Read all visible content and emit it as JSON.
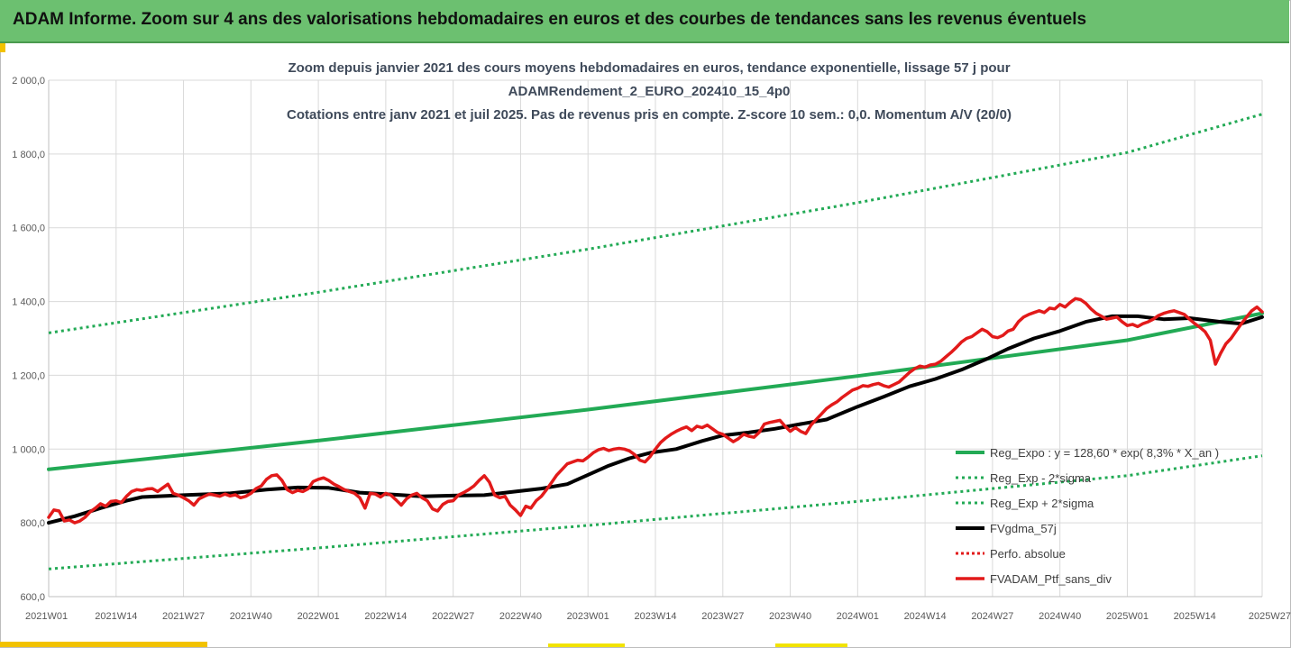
{
  "header": {
    "title": "ADAM Informe. Zoom sur 4 ans des valorisations hebdomadaires en euros et des courbes de tendances sans les revenus éventuels"
  },
  "chart_data": {
    "type": "line",
    "title_lines": [
      "Zoom depuis janvier 2021 des cours moyens hebdomadaires  en euros, tendance exponentielle, lissage 57 j pour",
      "ADAMRendement_2_EURO_202410_15_4p0",
      "Cotations entre janv 2021 et juil 2025. Pas de revenus pris en compte. Z-score 10 sem.: 0,0. Momentum A/V (20/0)"
    ],
    "x_tick_labels": [
      "2021W01",
      "2021W14",
      "2021W27",
      "2021W40",
      "2022W01",
      "2022W14",
      "2022W27",
      "2022W40",
      "2023W01",
      "2023W14",
      "2023W27",
      "2023W40",
      "2024W01",
      "2024W14",
      "2024W27",
      "2024W40",
      "2025W01",
      "2025W14",
      "2025W27"
    ],
    "x_range_weeks": [
      0,
      234
    ],
    "y_tick_labels": [
      "600,0",
      "800,0",
      "1 000,0",
      "1 200,0",
      "1 400,0",
      "1 600,0",
      "1 800,0",
      "2 000,0"
    ],
    "ylim": [
      600,
      2000
    ],
    "grid": true,
    "legend_position": "bottom-right",
    "colors": {
      "green": "#22aa55",
      "black": "#000000",
      "red": "#e21a1a"
    },
    "series": [
      {
        "name": "Reg_Expo : y = 128,60 * exp( 8,3% *  X_an )",
        "style": "solid-green",
        "points": [
          [
            0,
            945
          ],
          [
            52,
            1023
          ],
          [
            104,
            1107
          ],
          [
            156,
            1198
          ],
          [
            208,
            1295
          ],
          [
            234,
            1368
          ]
        ]
      },
      {
        "name": "Reg_Exp - 2*sigma",
        "style": "dotted-green",
        "points": [
          [
            0,
            675
          ],
          [
            52,
            732
          ],
          [
            104,
            793
          ],
          [
            156,
            858
          ],
          [
            208,
            928
          ],
          [
            234,
            982
          ]
        ]
      },
      {
        "name": "Reg_Exp + 2*sigma",
        "style": "dotted-green",
        "points": [
          [
            0,
            1315
          ],
          [
            52,
            1425
          ],
          [
            104,
            1542
          ],
          [
            156,
            1668
          ],
          [
            208,
            1804
          ],
          [
            234,
            1908
          ]
        ]
      },
      {
        "name": "FVgdma_57j",
        "style": "solid-black",
        "points": [
          [
            0,
            800
          ],
          [
            5,
            818
          ],
          [
            10,
            840
          ],
          [
            15,
            860
          ],
          [
            18,
            870
          ],
          [
            26,
            875
          ],
          [
            35,
            880
          ],
          [
            42,
            890
          ],
          [
            48,
            896
          ],
          [
            54,
            895
          ],
          [
            60,
            882
          ],
          [
            65,
            878
          ],
          [
            72,
            872
          ],
          [
            78,
            874
          ],
          [
            84,
            875
          ],
          [
            90,
            885
          ],
          [
            95,
            893
          ],
          [
            100,
            905
          ],
          [
            104,
            930
          ],
          [
            108,
            955
          ],
          [
            112,
            975
          ],
          [
            116,
            990
          ],
          [
            121,
            1000
          ],
          [
            126,
            1022
          ],
          [
            130,
            1037
          ],
          [
            135,
            1045
          ],
          [
            140,
            1055
          ],
          [
            145,
            1068
          ],
          [
            150,
            1080
          ],
          [
            156,
            1115
          ],
          [
            161,
            1142
          ],
          [
            166,
            1170
          ],
          [
            171,
            1190
          ],
          [
            176,
            1215
          ],
          [
            181,
            1245
          ],
          [
            185,
            1272
          ],
          [
            190,
            1300
          ],
          [
            195,
            1320
          ],
          [
            200,
            1345
          ],
          [
            205,
            1360
          ],
          [
            210,
            1360
          ],
          [
            215,
            1352
          ],
          [
            220,
            1355
          ],
          [
            226,
            1345
          ],
          [
            230,
            1340
          ],
          [
            234,
            1358
          ]
        ]
      },
      {
        "name": "Perfo. absolue",
        "style": "dotted-red",
        "points": []
      },
      {
        "name": "FVADAM_Ptf_sans_div",
        "style": "solid-red",
        "points": [
          [
            0,
            815
          ],
          [
            1,
            835
          ],
          [
            2,
            832
          ],
          [
            3,
            805
          ],
          [
            4,
            808
          ],
          [
            5,
            800
          ],
          [
            6,
            805
          ],
          [
            7,
            815
          ],
          [
            8,
            830
          ],
          [
            9,
            840
          ],
          [
            10,
            852
          ],
          [
            11,
            845
          ],
          [
            12,
            858
          ],
          [
            13,
            860
          ],
          [
            14,
            855
          ],
          [
            15,
            872
          ],
          [
            16,
            885
          ],
          [
            17,
            890
          ],
          [
            18,
            888
          ],
          [
            19,
            892
          ],
          [
            20,
            893
          ],
          [
            21,
            885
          ],
          [
            22,
            895
          ],
          [
            23,
            905
          ],
          [
            24,
            880
          ],
          [
            25,
            875
          ],
          [
            26,
            868
          ],
          [
            27,
            860
          ],
          [
            28,
            848
          ],
          [
            29,
            865
          ],
          [
            30,
            872
          ],
          [
            31,
            878
          ],
          [
            32,
            875
          ],
          [
            33,
            872
          ],
          [
            34,
            878
          ],
          [
            35,
            873
          ],
          [
            36,
            876
          ],
          [
            37,
            868
          ],
          [
            38,
            872
          ],
          [
            39,
            880
          ],
          [
            40,
            893
          ],
          [
            41,
            900
          ],
          [
            42,
            918
          ],
          [
            43,
            928
          ],
          [
            44,
            930
          ],
          [
            45,
            915
          ],
          [
            46,
            890
          ],
          [
            47,
            882
          ],
          [
            48,
            888
          ],
          [
            49,
            885
          ],
          [
            50,
            892
          ],
          [
            51,
            912
          ],
          [
            52,
            918
          ],
          [
            53,
            922
          ],
          [
            54,
            915
          ],
          [
            55,
            905
          ],
          [
            56,
            898
          ],
          [
            57,
            890
          ],
          [
            58,
            885
          ],
          [
            59,
            880
          ],
          [
            60,
            868
          ],
          [
            61,
            840
          ],
          [
            62,
            880
          ],
          [
            63,
            878
          ],
          [
            64,
            870
          ],
          [
            65,
            880
          ],
          [
            66,
            875
          ],
          [
            67,
            862
          ],
          [
            68,
            848
          ],
          [
            69,
            865
          ],
          [
            70,
            875
          ],
          [
            71,
            880
          ],
          [
            72,
            868
          ],
          [
            73,
            860
          ],
          [
            74,
            838
          ],
          [
            75,
            832
          ],
          [
            76,
            850
          ],
          [
            77,
            858
          ],
          [
            78,
            860
          ],
          [
            79,
            875
          ],
          [
            80,
            882
          ],
          [
            81,
            890
          ],
          [
            82,
            900
          ],
          [
            83,
            915
          ],
          [
            84,
            928
          ],
          [
            85,
            910
          ],
          [
            86,
            875
          ],
          [
            87,
            868
          ],
          [
            88,
            872
          ],
          [
            89,
            848
          ],
          [
            90,
            835
          ],
          [
            91,
            820
          ],
          [
            92,
            845
          ],
          [
            93,
            840
          ],
          [
            94,
            860
          ],
          [
            95,
            872
          ],
          [
            96,
            890
          ],
          [
            97,
            910
          ],
          [
            98,
            930
          ],
          [
            99,
            945
          ],
          [
            100,
            960
          ],
          [
            101,
            965
          ],
          [
            102,
            970
          ],
          [
            103,
            968
          ],
          [
            104,
            978
          ],
          [
            105,
            990
          ],
          [
            106,
            998
          ],
          [
            107,
            1002
          ],
          [
            108,
            996
          ],
          [
            109,
            1000
          ],
          [
            110,
            1002
          ],
          [
            111,
            1000
          ],
          [
            112,
            995
          ],
          [
            113,
            985
          ],
          [
            114,
            970
          ],
          [
            115,
            965
          ],
          [
            116,
            980
          ],
          [
            117,
            1000
          ],
          [
            118,
            1018
          ],
          [
            119,
            1030
          ],
          [
            120,
            1040
          ],
          [
            121,
            1048
          ],
          [
            122,
            1055
          ],
          [
            123,
            1060
          ],
          [
            124,
            1050
          ],
          [
            125,
            1062
          ],
          [
            126,
            1058
          ],
          [
            127,
            1065
          ],
          [
            128,
            1055
          ],
          [
            129,
            1045
          ],
          [
            130,
            1040
          ],
          [
            131,
            1030
          ],
          [
            132,
            1020
          ],
          [
            133,
            1028
          ],
          [
            134,
            1040
          ],
          [
            135,
            1035
          ],
          [
            136,
            1032
          ],
          [
            137,
            1045
          ],
          [
            138,
            1068
          ],
          [
            139,
            1072
          ],
          [
            140,
            1075
          ],
          [
            141,
            1078
          ],
          [
            142,
            1062
          ],
          [
            143,
            1048
          ],
          [
            144,
            1058
          ],
          [
            145,
            1048
          ],
          [
            146,
            1042
          ],
          [
            147,
            1065
          ],
          [
            148,
            1080
          ],
          [
            149,
            1095
          ],
          [
            150,
            1110
          ],
          [
            151,
            1120
          ],
          [
            152,
            1128
          ],
          [
            153,
            1140
          ],
          [
            154,
            1150
          ],
          [
            155,
            1160
          ],
          [
            156,
            1165
          ],
          [
            157,
            1172
          ],
          [
            158,
            1170
          ],
          [
            159,
            1175
          ],
          [
            160,
            1178
          ],
          [
            161,
            1172
          ],
          [
            162,
            1168
          ],
          [
            163,
            1175
          ],
          [
            164,
            1182
          ],
          [
            165,
            1195
          ],
          [
            166,
            1208
          ],
          [
            167,
            1218
          ],
          [
            168,
            1225
          ],
          [
            169,
            1222
          ],
          [
            170,
            1228
          ],
          [
            171,
            1230
          ],
          [
            172,
            1238
          ],
          [
            173,
            1250
          ],
          [
            174,
            1262
          ],
          [
            175,
            1275
          ],
          [
            176,
            1290
          ],
          [
            177,
            1300
          ],
          [
            178,
            1305
          ],
          [
            179,
            1315
          ],
          [
            180,
            1325
          ],
          [
            181,
            1318
          ],
          [
            182,
            1305
          ],
          [
            183,
            1302
          ],
          [
            184,
            1308
          ],
          [
            185,
            1320
          ],
          [
            186,
            1325
          ],
          [
            187,
            1345
          ],
          [
            188,
            1358
          ],
          [
            189,
            1365
          ],
          [
            190,
            1370
          ],
          [
            191,
            1375
          ],
          [
            192,
            1370
          ],
          [
            193,
            1382
          ],
          [
            194,
            1380
          ],
          [
            195,
            1392
          ],
          [
            196,
            1385
          ],
          [
            197,
            1398
          ],
          [
            198,
            1408
          ],
          [
            199,
            1405
          ],
          [
            200,
            1395
          ],
          [
            201,
            1380
          ],
          [
            202,
            1368
          ],
          [
            203,
            1360
          ],
          [
            204,
            1352
          ],
          [
            205,
            1355
          ],
          [
            206,
            1358
          ],
          [
            207,
            1345
          ],
          [
            208,
            1335
          ],
          [
            209,
            1338
          ],
          [
            210,
            1332
          ],
          [
            211,
            1340
          ],
          [
            212,
            1345
          ],
          [
            213,
            1352
          ],
          [
            214,
            1362
          ],
          [
            215,
            1368
          ],
          [
            216,
            1372
          ],
          [
            217,
            1375
          ],
          [
            218,
            1370
          ],
          [
            219,
            1365
          ],
          [
            220,
            1352
          ],
          [
            221,
            1340
          ],
          [
            222,
            1330
          ],
          [
            223,
            1318
          ],
          [
            224,
            1295
          ],
          [
            225,
            1230
          ],
          [
            226,
            1260
          ],
          [
            227,
            1285
          ],
          [
            228,
            1300
          ],
          [
            229,
            1320
          ],
          [
            230,
            1340
          ],
          [
            231,
            1358
          ],
          [
            232,
            1375
          ],
          [
            233,
            1385
          ],
          [
            234,
            1372
          ]
        ]
      }
    ]
  }
}
